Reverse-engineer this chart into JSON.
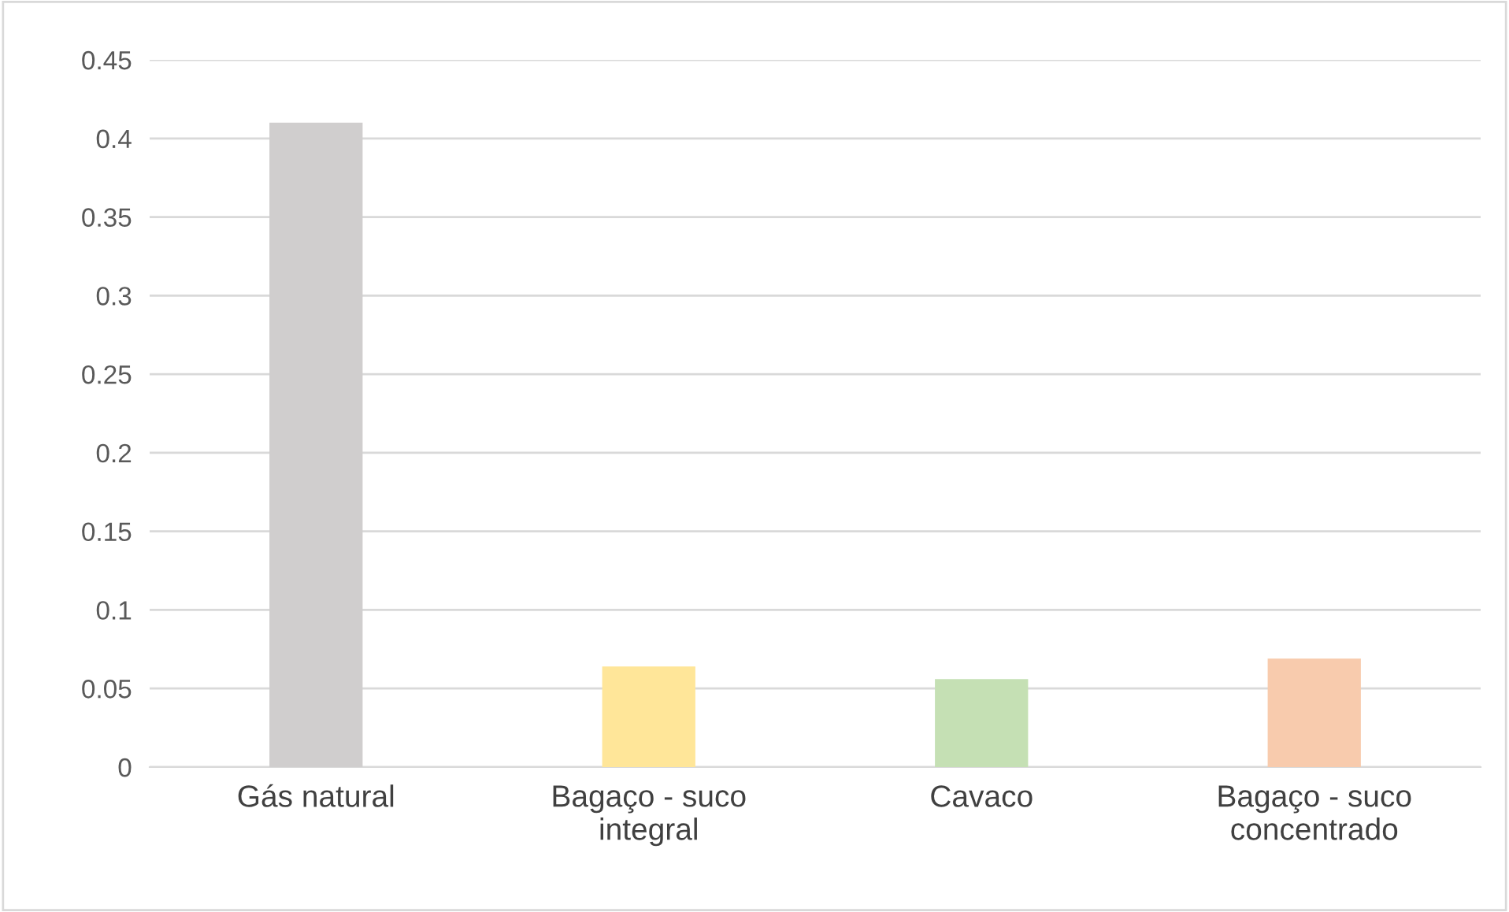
{
  "chart_data": {
    "type": "bar",
    "categories": [
      "Gás natural",
      "Bagaço - suco\nintegral",
      "Cavaco",
      "Bagaço - suco\nconcentrado"
    ],
    "values": [
      0.41,
      0.064,
      0.056,
      0.069
    ],
    "colors": [
      "#d0cece",
      "#ffe699",
      "#c5e0b4",
      "#f8cbad"
    ],
    "ylim": [
      0,
      0.45
    ],
    "yticks": [
      0,
      0.05,
      0.1,
      0.15,
      0.2,
      0.25,
      0.3,
      0.35,
      0.4,
      0.45
    ],
    "grid": "y"
  }
}
